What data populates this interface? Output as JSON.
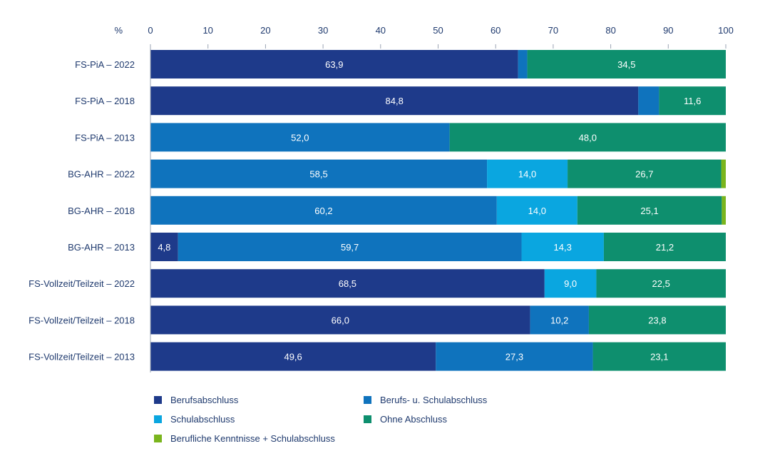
{
  "chart_data": {
    "type": "bar",
    "orientation": "horizontal",
    "stacked": true,
    "unit_label": "%",
    "xlim": [
      0,
      100
    ],
    "x_ticks": [
      "0",
      "10",
      "20",
      "30",
      "40",
      "50",
      "60",
      "70",
      "80",
      "90",
      "100"
    ],
    "categories": [
      "FS-PiA – 2022",
      "FS-PiA – 2018",
      "FS-PiA – 2013",
      "BG-AHR – 2022",
      "BG-AHR – 2018",
      "BG-AHR – 2013",
      "FS-Vollzeit/Teilzeit – 2022",
      "FS-Vollzeit/Teilzeit – 2018",
      "FS-Vollzeit/Teilzeit – 2013"
    ],
    "series": [
      {
        "name": "Berufsabschluss",
        "color": "#1e3a8a",
        "values": [
          63.9,
          84.8,
          0,
          0,
          0,
          4.8,
          68.5,
          66.0,
          49.6
        ],
        "labels": [
          "63,9",
          "84,8",
          "",
          "",
          "",
          "4,8",
          "68,5",
          "66,0",
          "49,6"
        ]
      },
      {
        "name": "Berufs- u. Schulabschluss",
        "color": "#0f73bd",
        "values": [
          1.6,
          3.6,
          52.0,
          58.5,
          60.2,
          59.7,
          0,
          10.2,
          27.3
        ],
        "labels": [
          "",
          "",
          "52,0",
          "58,5",
          "60,2",
          "59,7",
          "",
          "10,2",
          "27,3"
        ]
      },
      {
        "name": "Schulabschluss",
        "color": "#0aa6e0",
        "values": [
          0,
          0,
          0,
          14.0,
          14.0,
          14.3,
          9.0,
          0,
          0
        ],
        "labels": [
          "",
          "",
          "",
          "14,0",
          "14,0",
          "14,3",
          "9,0",
          "",
          ""
        ]
      },
      {
        "name": "Ohne Abschluss",
        "color": "#0e8f6e",
        "values": [
          34.5,
          11.6,
          48.0,
          26.7,
          25.1,
          21.2,
          22.5,
          23.8,
          23.1
        ],
        "labels": [
          "34,5",
          "11,6",
          "48,0",
          "26,7",
          "25,1",
          "21,2",
          "22,5",
          "23,8",
          "23,1"
        ]
      },
      {
        "name": "Berufliche Kenntnisse + Schulabschluss",
        "color": "#7ab51d",
        "values": [
          0,
          0,
          0,
          0.8,
          0.7,
          0,
          0,
          0,
          0
        ],
        "labels": [
          "",
          "",
          "",
          "",
          "",
          "",
          "",
          "",
          ""
        ]
      }
    ],
    "legend_position": "bottom",
    "grid": false
  }
}
